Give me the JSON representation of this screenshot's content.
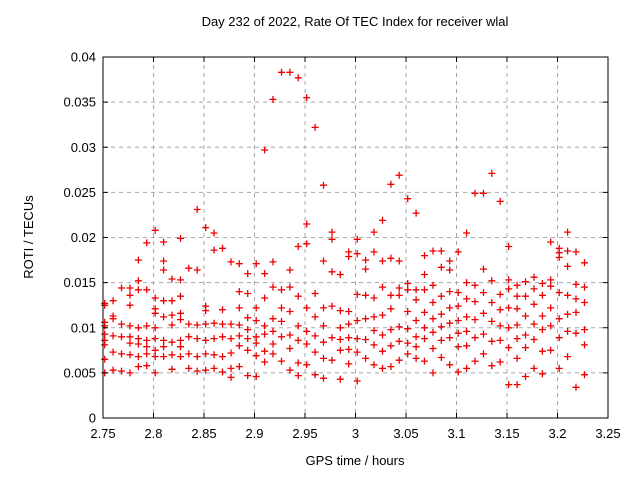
{
  "chart_data": {
    "type": "scatter",
    "title": "Day 232 of 2022, Rate Of TEC Index for receiver wlal",
    "xlabel": "GPS time / hours",
    "ylabel": "ROTI / TECUs",
    "xlim": [
      2.75,
      3.25
    ],
    "ylim": [
      0,
      0.04
    ],
    "xticks": {
      "values": [
        2.75,
        2.8,
        2.85,
        2.9,
        2.95,
        3,
        3.05,
        3.1,
        3.15,
        3.2,
        3.25
      ],
      "labels": [
        "2.75",
        "2.8",
        "2.85",
        "2.9",
        "2.95",
        "3",
        "3.05",
        "3.1",
        "3.15",
        "3.2",
        "3.25"
      ]
    },
    "yticks": {
      "values": [
        0,
        0.005,
        0.01,
        0.015,
        0.02,
        0.025,
        0.03,
        0.035,
        0.04
      ],
      "labels": [
        "0",
        "0.005",
        "0.01",
        "0.015",
        "0.02",
        "0.025",
        "0.03",
        "0.035",
        "0.04"
      ]
    },
    "grid": true,
    "legend": "none",
    "marker": "plus",
    "marker_color": "#ee0000",
    "grid_color": "#a8a8a8",
    "axis_color": "#000000",
    "background": "#ffffff",
    "series_name": "ROTI",
    "points": [
      [
        2.7517,
        0.0127
      ],
      [
        2.7517,
        0.0125
      ],
      [
        2.7517,
        0.0106
      ],
      [
        2.7517,
        0.0102
      ],
      [
        2.7517,
        0.0093
      ],
      [
        2.7517,
        0.0086
      ],
      [
        2.7517,
        0.0081
      ],
      [
        2.7517,
        0.0065
      ],
      [
        2.7517,
        0.005
      ],
      [
        2.76,
        0.013
      ],
      [
        2.76,
        0.0113
      ],
      [
        2.76,
        0.011
      ],
      [
        2.76,
        0.0091
      ],
      [
        2.76,
        0.0073
      ],
      [
        2.76,
        0.0053
      ],
      [
        2.7683,
        0.0144
      ],
      [
        2.7683,
        0.0104
      ],
      [
        2.7683,
        0.009
      ],
      [
        2.7683,
        0.0071
      ],
      [
        2.7683,
        0.0052
      ],
      [
        2.7767,
        0.0144
      ],
      [
        2.7767,
        0.0136
      ],
      [
        2.7767,
        0.0125
      ],
      [
        2.7767,
        0.0102
      ],
      [
        2.7767,
        0.009
      ],
      [
        2.7767,
        0.0083
      ],
      [
        2.7767,
        0.007
      ],
      [
        2.7767,
        0.005
      ],
      [
        2.785,
        0.0175
      ],
      [
        2.785,
        0.0152
      ],
      [
        2.785,
        0.0142
      ],
      [
        2.785,
        0.01
      ],
      [
        2.785,
        0.0088
      ],
      [
        2.785,
        0.0082
      ],
      [
        2.785,
        0.0068
      ],
      [
        2.785,
        0.0057
      ],
      [
        2.7933,
        0.0194
      ],
      [
        2.7933,
        0.0142
      ],
      [
        2.7933,
        0.0102
      ],
      [
        2.7933,
        0.0086
      ],
      [
        2.7933,
        0.0079
      ],
      [
        2.7933,
        0.0071
      ],
      [
        2.7933,
        0.0058
      ],
      [
        2.8017,
        0.0208
      ],
      [
        2.8017,
        0.0133
      ],
      [
        2.8017,
        0.0121
      ],
      [
        2.8017,
        0.0116
      ],
      [
        2.8017,
        0.01
      ],
      [
        2.8017,
        0.0088
      ],
      [
        2.8017,
        0.0075
      ],
      [
        2.8017,
        0.0068
      ],
      [
        2.8017,
        0.005
      ],
      [
        2.81,
        0.0195
      ],
      [
        2.81,
        0.0174
      ],
      [
        2.81,
        0.0164
      ],
      [
        2.81,
        0.013
      ],
      [
        2.81,
        0.0112
      ],
      [
        2.81,
        0.0086
      ],
      [
        2.81,
        0.0079
      ],
      [
        2.81,
        0.0068
      ],
      [
        2.8183,
        0.0154
      ],
      [
        2.8183,
        0.013
      ],
      [
        2.8183,
        0.0114
      ],
      [
        2.8183,
        0.0103
      ],
      [
        2.8183,
        0.0084
      ],
      [
        2.8183,
        0.007
      ],
      [
        2.8183,
        0.0054
      ],
      [
        2.8267,
        0.0199
      ],
      [
        2.8267,
        0.0153
      ],
      [
        2.8267,
        0.0135
      ],
      [
        2.8267,
        0.0116
      ],
      [
        2.8267,
        0.0109
      ],
      [
        2.8267,
        0.0086
      ],
      [
        2.8267,
        0.0079
      ],
      [
        2.8267,
        0.0068
      ],
      [
        2.835,
        0.0166
      ],
      [
        2.835,
        0.0104
      ],
      [
        2.835,
        0.009
      ],
      [
        2.835,
        0.0071
      ],
      [
        2.835,
        0.0055
      ],
      [
        2.8433,
        0.0231
      ],
      [
        2.8433,
        0.0164
      ],
      [
        2.8433,
        0.0103
      ],
      [
        2.8433,
        0.0088
      ],
      [
        2.8433,
        0.0068
      ],
      [
        2.8433,
        0.0052
      ],
      [
        2.8517,
        0.0211
      ],
      [
        2.8517,
        0.0124
      ],
      [
        2.8517,
        0.0119
      ],
      [
        2.8517,
        0.0104
      ],
      [
        2.8517,
        0.0086
      ],
      [
        2.8517,
        0.0071
      ],
      [
        2.8517,
        0.0053
      ],
      [
        2.86,
        0.0205
      ],
      [
        2.86,
        0.0186
      ],
      [
        2.86,
        0.0105
      ],
      [
        2.86,
        0.0088
      ],
      [
        2.86,
        0.007
      ],
      [
        2.86,
        0.0055
      ],
      [
        2.8683,
        0.0188
      ],
      [
        2.8683,
        0.012
      ],
      [
        2.8683,
        0.0104
      ],
      [
        2.8683,
        0.009
      ],
      [
        2.8683,
        0.0068
      ],
      [
        2.8683,
        0.0051
      ],
      [
        2.8767,
        0.0173
      ],
      [
        2.8767,
        0.0104
      ],
      [
        2.8767,
        0.0088
      ],
      [
        2.8767,
        0.0072
      ],
      [
        2.8767,
        0.0055
      ],
      [
        2.8767,
        0.0045
      ],
      [
        2.885,
        0.0171
      ],
      [
        2.885,
        0.014
      ],
      [
        2.885,
        0.0122
      ],
      [
        2.885,
        0.0103
      ],
      [
        2.885,
        0.0091
      ],
      [
        2.885,
        0.008
      ],
      [
        2.885,
        0.0057
      ],
      [
        2.8933,
        0.016
      ],
      [
        2.8933,
        0.0138
      ],
      [
        2.8933,
        0.0111
      ],
      [
        2.8933,
        0.0098
      ],
      [
        2.8933,
        0.0088
      ],
      [
        2.8933,
        0.0075
      ],
      [
        2.8933,
        0.0047
      ],
      [
        2.9017,
        0.0171
      ],
      [
        2.9017,
        0.0122
      ],
      [
        2.9017,
        0.0108
      ],
      [
        2.9017,
        0.009
      ],
      [
        2.9017,
        0.0083
      ],
      [
        2.9017,
        0.0069
      ],
      [
        2.9017,
        0.0046
      ],
      [
        2.91,
        0.0297
      ],
      [
        2.91,
        0.016
      ],
      [
        2.91,
        0.0133
      ],
      [
        2.91,
        0.0102
      ],
      [
        2.91,
        0.0093
      ],
      [
        2.91,
        0.0074
      ],
      [
        2.91,
        0.0062
      ],
      [
        2.9183,
        0.0353
      ],
      [
        2.9183,
        0.0173
      ],
      [
        2.9183,
        0.0145
      ],
      [
        2.9183,
        0.011
      ],
      [
        2.9183,
        0.0096
      ],
      [
        2.9183,
        0.0082
      ],
      [
        2.9183,
        0.0071
      ],
      [
        2.9267,
        0.0383
      ],
      [
        2.9267,
        0.0142
      ],
      [
        2.9267,
        0.0122
      ],
      [
        2.9267,
        0.0107
      ],
      [
        2.9267,
        0.009
      ],
      [
        2.9267,
        0.0063
      ],
      [
        2.935,
        0.0383
      ],
      [
        2.935,
        0.0164
      ],
      [
        2.935,
        0.0145
      ],
      [
        2.935,
        0.0118
      ],
      [
        2.935,
        0.0092
      ],
      [
        2.935,
        0.0077
      ],
      [
        2.935,
        0.0053
      ],
      [
        2.9433,
        0.0377
      ],
      [
        2.9433,
        0.019
      ],
      [
        2.9433,
        0.0135
      ],
      [
        2.9433,
        0.0102
      ],
      [
        2.9433,
        0.0086
      ],
      [
        2.9433,
        0.0061
      ],
      [
        2.9433,
        0.0047
      ],
      [
        2.9517,
        0.0355
      ],
      [
        2.9517,
        0.0215
      ],
      [
        2.9517,
        0.0193
      ],
      [
        2.9517,
        0.0122
      ],
      [
        2.9517,
        0.0096
      ],
      [
        2.9517,
        0.0082
      ],
      [
        2.9517,
        0.0059
      ],
      [
        2.96,
        0.0322
      ],
      [
        2.96,
        0.0138
      ],
      [
        2.96,
        0.0112
      ],
      [
        2.96,
        0.0091
      ],
      [
        2.96,
        0.0073
      ],
      [
        2.96,
        0.0048
      ],
      [
        2.9683,
        0.0258
      ],
      [
        2.9683,
        0.0174
      ],
      [
        2.9683,
        0.0122
      ],
      [
        2.9683,
        0.0102
      ],
      [
        2.9683,
        0.0084
      ],
      [
        2.9683,
        0.0066
      ],
      [
        2.9683,
        0.0044
      ],
      [
        2.9767,
        0.0206
      ],
      [
        2.9767,
        0.0198
      ],
      [
        2.9767,
        0.0162
      ],
      [
        2.9767,
        0.0124
      ],
      [
        2.9767,
        0.0089
      ],
      [
        2.9767,
        0.0064
      ],
      [
        2.985,
        0.0159
      ],
      [
        2.985,
        0.0119
      ],
      [
        2.985,
        0.01
      ],
      [
        2.985,
        0.0087
      ],
      [
        2.985,
        0.0075
      ],
      [
        2.985,
        0.0043
      ],
      [
        2.9933,
        0.0184
      ],
      [
        2.9933,
        0.0179
      ],
      [
        2.9933,
        0.0118
      ],
      [
        2.9933,
        0.0104
      ],
      [
        2.9933,
        0.0089
      ],
      [
        2.9933,
        0.0076
      ],
      [
        2.9933,
        0.006
      ],
      [
        3.0017,
        0.0198
      ],
      [
        3.0017,
        0.0182
      ],
      [
        3.0017,
        0.0137
      ],
      [
        3.0017,
        0.0108
      ],
      [
        3.0017,
        0.0088
      ],
      [
        3.0017,
        0.0073
      ],
      [
        3.0017,
        0.0041
      ],
      [
        3.01,
        0.0175
      ],
      [
        3.01,
        0.0165
      ],
      [
        3.01,
        0.0136
      ],
      [
        3.01,
        0.011
      ],
      [
        3.01,
        0.0087
      ],
      [
        3.01,
        0.0066
      ],
      [
        3.0183,
        0.0206
      ],
      [
        3.0183,
        0.0184
      ],
      [
        3.0183,
        0.0133
      ],
      [
        3.0183,
        0.0112
      ],
      [
        3.0183,
        0.0097
      ],
      [
        3.0183,
        0.0081
      ],
      [
        3.0183,
        0.0059
      ],
      [
        3.0267,
        0.0219
      ],
      [
        3.0267,
        0.0174
      ],
      [
        3.0267,
        0.0145
      ],
      [
        3.0267,
        0.0114
      ],
      [
        3.0267,
        0.0092
      ],
      [
        3.0267,
        0.0074
      ],
      [
        3.0267,
        0.0055
      ],
      [
        3.035,
        0.0259
      ],
      [
        3.035,
        0.0177
      ],
      [
        3.035,
        0.0136
      ],
      [
        3.035,
        0.0121
      ],
      [
        3.035,
        0.0098
      ],
      [
        3.035,
        0.008
      ],
      [
        3.035,
        0.0057
      ],
      [
        3.0433,
        0.0269
      ],
      [
        3.0433,
        0.0174
      ],
      [
        3.0433,
        0.0144
      ],
      [
        3.0433,
        0.0136
      ],
      [
        3.0433,
        0.0101
      ],
      [
        3.0433,
        0.0085
      ],
      [
        3.0433,
        0.0064
      ],
      [
        3.0517,
        0.0243
      ],
      [
        3.0517,
        0.0149
      ],
      [
        3.0517,
        0.0142
      ],
      [
        3.0517,
        0.0118
      ],
      [
        3.0517,
        0.0099
      ],
      [
        3.0517,
        0.0083
      ],
      [
        3.0517,
        0.0071
      ],
      [
        3.06,
        0.0227
      ],
      [
        3.06,
        0.0142
      ],
      [
        3.06,
        0.0131
      ],
      [
        3.06,
        0.0108
      ],
      [
        3.06,
        0.009
      ],
      [
        3.06,
        0.0079
      ],
      [
        3.06,
        0.0066
      ],
      [
        3.0683,
        0.018
      ],
      [
        3.0683,
        0.0159
      ],
      [
        3.0683,
        0.0142
      ],
      [
        3.0683,
        0.0117
      ],
      [
        3.0683,
        0.01
      ],
      [
        3.0683,
        0.0088
      ],
      [
        3.0683,
        0.0063
      ],
      [
        3.0767,
        0.0185
      ],
      [
        3.0767,
        0.0147
      ],
      [
        3.0767,
        0.0128
      ],
      [
        3.0767,
        0.011
      ],
      [
        3.0767,
        0.0095
      ],
      [
        3.0767,
        0.0077
      ],
      [
        3.0767,
        0.005
      ],
      [
        3.085,
        0.0185
      ],
      [
        3.085,
        0.0167
      ],
      [
        3.085,
        0.0135
      ],
      [
        3.085,
        0.0115
      ],
      [
        3.085,
        0.0101
      ],
      [
        3.085,
        0.0086
      ],
      [
        3.085,
        0.0067
      ],
      [
        3.0933,
        0.0174
      ],
      [
        3.0933,
        0.0164
      ],
      [
        3.0933,
        0.014
      ],
      [
        3.0933,
        0.0122
      ],
      [
        3.0933,
        0.0105
      ],
      [
        3.0933,
        0.0089
      ],
      [
        3.0933,
        0.0059
      ],
      [
        3.1017,
        0.0184
      ],
      [
        3.1017,
        0.0139
      ],
      [
        3.1017,
        0.0124
      ],
      [
        3.1017,
        0.0108
      ],
      [
        3.1017,
        0.0094
      ],
      [
        3.1017,
        0.0079
      ],
      [
        3.1017,
        0.0051
      ],
      [
        3.11,
        0.0205
      ],
      [
        3.11,
        0.015
      ],
      [
        3.11,
        0.0132
      ],
      [
        3.11,
        0.0112
      ],
      [
        3.11,
        0.0096
      ],
      [
        3.11,
        0.008
      ],
      [
        3.11,
        0.0055
      ],
      [
        3.1183,
        0.0249
      ],
      [
        3.1183,
        0.0147
      ],
      [
        3.1183,
        0.0129
      ],
      [
        3.1183,
        0.0109
      ],
      [
        3.1183,
        0.0089
      ],
      [
        3.1183,
        0.0063
      ],
      [
        3.1267,
        0.0249
      ],
      [
        3.1267,
        0.0165
      ],
      [
        3.1267,
        0.0139
      ],
      [
        3.1267,
        0.0116
      ],
      [
        3.1267,
        0.0093
      ],
      [
        3.1267,
        0.0071
      ],
      [
        3.135,
        0.0271
      ],
      [
        3.135,
        0.0152
      ],
      [
        3.135,
        0.0128
      ],
      [
        3.135,
        0.0107
      ],
      [
        3.135,
        0.0085
      ],
      [
        3.135,
        0.0058
      ],
      [
        3.1433,
        0.024
      ],
      [
        3.1433,
        0.0137
      ],
      [
        3.1433,
        0.012
      ],
      [
        3.1433,
        0.0102
      ],
      [
        3.1433,
        0.0086
      ],
      [
        3.1433,
        0.0062
      ],
      [
        3.1517,
        0.019
      ],
      [
        3.1517,
        0.0153
      ],
      [
        3.1517,
        0.0143
      ],
      [
        3.1517,
        0.0122
      ],
      [
        3.1517,
        0.01
      ],
      [
        3.1517,
        0.0078
      ],
      [
        3.1517,
        0.0037
      ],
      [
        3.16,
        0.0147
      ],
      [
        3.16,
        0.0135
      ],
      [
        3.16,
        0.0121
      ],
      [
        3.16,
        0.0103
      ],
      [
        3.16,
        0.0088
      ],
      [
        3.16,
        0.0066
      ],
      [
        3.16,
        0.0037
      ],
      [
        3.1683,
        0.0151
      ],
      [
        3.1683,
        0.0135
      ],
      [
        3.1683,
        0.0113
      ],
      [
        3.1683,
        0.0092
      ],
      [
        3.1683,
        0.0078
      ],
      [
        3.1683,
        0.0046
      ],
      [
        3.1767,
        0.0156
      ],
      [
        3.1767,
        0.0143
      ],
      [
        3.1767,
        0.0126
      ],
      [
        3.1767,
        0.0104
      ],
      [
        3.1767,
        0.0087
      ],
      [
        3.1767,
        0.0055
      ],
      [
        3.185,
        0.0149
      ],
      [
        3.185,
        0.0136
      ],
      [
        3.185,
        0.0113
      ],
      [
        3.185,
        0.0098
      ],
      [
        3.185,
        0.0074
      ],
      [
        3.185,
        0.0049
      ],
      [
        3.1933,
        0.0195
      ],
      [
        3.1933,
        0.0153
      ],
      [
        3.1933,
        0.0146
      ],
      [
        3.1933,
        0.0122
      ],
      [
        3.1933,
        0.0102
      ],
      [
        3.1933,
        0.0075
      ],
      [
        3.2017,
        0.0188
      ],
      [
        3.2017,
        0.0183
      ],
      [
        3.2017,
        0.0178
      ],
      [
        3.2017,
        0.0139
      ],
      [
        3.2017,
        0.011
      ],
      [
        3.2017,
        0.0089
      ],
      [
        3.2017,
        0.0055
      ],
      [
        3.21,
        0.0206
      ],
      [
        3.21,
        0.0185
      ],
      [
        3.21,
        0.0168
      ],
      [
        3.21,
        0.0136
      ],
      [
        3.21,
        0.0115
      ],
      [
        3.21,
        0.0096
      ],
      [
        3.21,
        0.0068
      ],
      [
        3.2183,
        0.0184
      ],
      [
        3.2183,
        0.0148
      ],
      [
        3.2183,
        0.0132
      ],
      [
        3.2183,
        0.0117
      ],
      [
        3.2183,
        0.0094
      ],
      [
        3.2183,
        0.0034
      ],
      [
        3.2267,
        0.0172
      ],
      [
        3.2267,
        0.0145
      ],
      [
        3.2267,
        0.0128
      ],
      [
        3.2267,
        0.0098
      ],
      [
        3.2267,
        0.0081
      ],
      [
        3.2267,
        0.0048
      ]
    ]
  }
}
